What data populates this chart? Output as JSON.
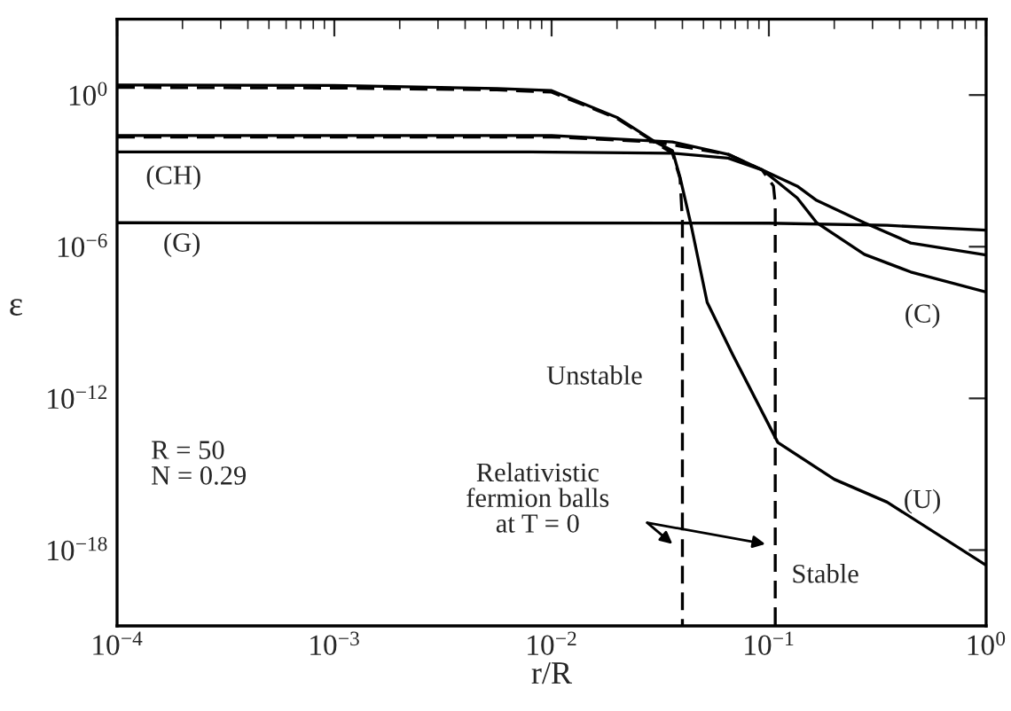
{
  "chart_data": {
    "type": "line",
    "xlabel": "r/R",
    "ylabel": "ε",
    "log": "xy",
    "xlim": [
      0.0001,
      1
    ],
    "xticks": [
      {
        "value": 0.0001,
        "label": "10$^{−4}$"
      },
      {
        "value": 0.001,
        "label": "10$^{−3}$"
      },
      {
        "value": 0.01,
        "label": "10$^{−2}$"
      },
      {
        "value": 0.1,
        "label": "10$^{−1}$"
      },
      {
        "value": 1,
        "label": "10$^{0}$"
      }
    ],
    "ylim": [
      1e-21,
      1000
    ],
    "yticks": [
      {
        "value": 1e-18,
        "label": "10$^{−18}$"
      },
      {
        "value": 1e-12,
        "label": "10$^{−12}$"
      },
      {
        "value": 1e-06,
        "label": "10$^{−6}$"
      },
      {
        "value": 1,
        "label": "10$^{0}$"
      }
    ],
    "grid": false,
    "legend": false,
    "series": [
      {
        "color": "#000000",
        "line_style": "solid",
        "x": [
          0.0001,
          0.001,
          0.0056,
          0.01,
          0.02,
          0.03,
          0.036,
          0.039,
          0.044,
          0.052,
          0.068,
          0.11,
          0.2,
          0.35,
          1
        ],
        "values": [
          2.5,
          2.4,
          1.8,
          1.5,
          0.13,
          0.014,
          0.0063,
          0.00056,
          6.3e-06,
          6.3e-09,
          5.6e-11,
          1.8e-14,
          6.3e-16,
          7.9e-17,
          2.5e-19
        ]
      },
      {
        "color": "#000000",
        "line_style": "dashed",
        "x": [
          0.0001,
          0.001,
          0.0056,
          0.01,
          0.02,
          0.03,
          0.036,
          0.039,
          0.04,
          0.04
        ],
        "values": [
          2.0,
          1.9,
          1.6,
          1.3,
          0.12,
          0.013,
          0.005,
          0.0005,
          1e-05,
          1e-21
        ]
      },
      {
        "color": "#000000",
        "line_style": "solid",
        "x": [
          0.0001,
          0.01,
          0.036,
          0.065,
          0.093,
          0.107,
          0.135,
          0.166,
          0.275,
          0.45,
          1
        ],
        "values": [
          0.025,
          0.025,
          0.014,
          0.0045,
          0.0011,
          0.00043,
          8.5e-05,
          8.9e-06,
          5e-07,
          1e-07,
          1.6e-08
        ]
      },
      {
        "color": "#000000",
        "line_style": "dashed",
        "x": [
          0.0001,
          0.01,
          0.03,
          0.065,
          0.093,
          0.105,
          0.107,
          0.107
        ],
        "values": [
          0.022,
          0.022,
          0.014,
          0.0045,
          0.0011,
          0.00025,
          5e-05,
          1e-21
        ]
      },
      {
        "color": "#000000",
        "line_style": "solid",
        "x": [
          0.0001,
          0.008,
          0.036,
          0.065,
          0.093,
          0.107,
          0.135,
          0.166,
          0.275,
          0.45,
          1
        ],
        "values": [
          0.0056,
          0.0056,
          0.005,
          0.0032,
          0.0011,
          0.00063,
          0.00025,
          6.8e-05,
          8.9e-06,
          1.4e-06,
          4.7e-07
        ]
      },
      {
        "color": "#000000",
        "line_style": "solid",
        "x": [
          0.0001,
          0.1,
          0.35,
          1
        ],
        "values": [
          8.9e-06,
          8.5e-06,
          7e-06,
          4.5e-06
        ]
      }
    ],
    "annotations": [
      "(CH)",
      "(G)",
      "(C)",
      "(U)",
      "Unstable",
      "Stable",
      "R = 50\nN = 0.29",
      "Relativistic\nfermion balls\nat T = 0"
    ]
  }
}
